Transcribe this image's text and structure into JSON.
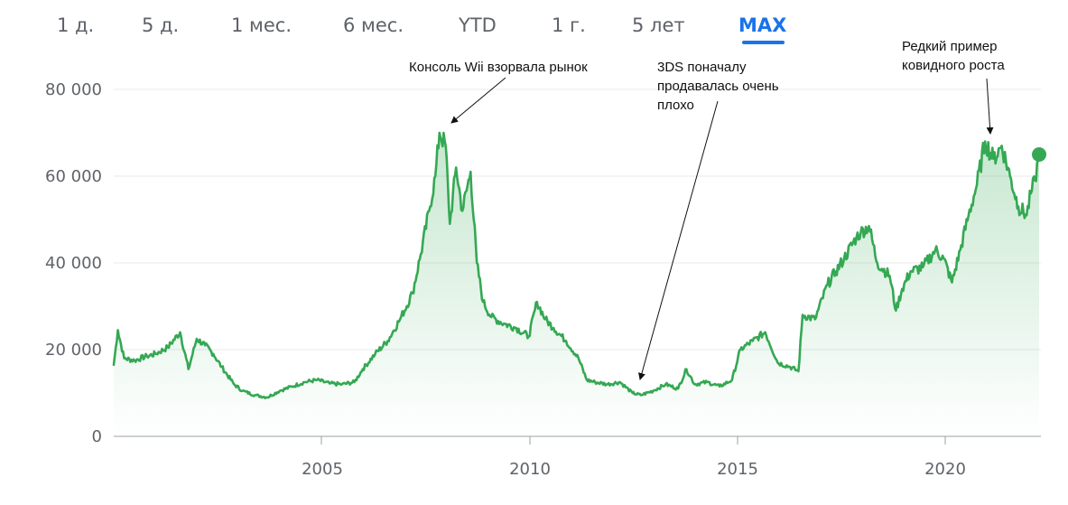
{
  "tabs": [
    {
      "label": "1 д."
    },
    {
      "label": "5 д."
    },
    {
      "label": "1 мес."
    },
    {
      "label": "6 мес."
    },
    {
      "label": "YTD"
    },
    {
      "label": "1 г."
    },
    {
      "label": "5 лет"
    },
    {
      "label": "MAX"
    }
  ],
  "active_tab": "MAX",
  "colors": {
    "line": "#34a853",
    "fill": "#34a853",
    "grid": "#e8eaed",
    "axis": "#5f6368",
    "active_tab": "#1a73e8"
  },
  "chart_data": {
    "type": "line",
    "x_tick_labels": [
      "2005",
      "2010",
      "2015",
      "2020"
    ],
    "y_tick_labels": [
      "0",
      "20 000",
      "40 000",
      "60 000",
      "80 000"
    ],
    "xlim": [
      2000.0,
      2022.3
    ],
    "ylim": [
      0,
      80000
    ],
    "grid": "horizontal",
    "series": [
      {
        "x": [
          2000.0,
          2000.1,
          2000.25,
          2000.5,
          2000.8,
          2001.0,
          2001.3,
          2001.6,
          2001.8,
          2002.0,
          2002.2,
          2002.4,
          2002.6,
          2002.9,
          2003.1,
          2003.4,
          2003.7,
          2004.0,
          2004.3,
          2004.6,
          2004.9,
          2005.2,
          2005.5,
          2005.8,
          2006.0,
          2006.3,
          2006.6,
          2006.9,
          2007.2,
          2007.4,
          2007.6,
          2007.75,
          2007.85,
          2008.0,
          2008.1,
          2008.25,
          2008.4,
          2008.6,
          2008.75,
          2008.9,
          2009.1,
          2009.4,
          2009.7,
          2010.0,
          2010.2,
          2010.4,
          2010.6,
          2010.9,
          2011.2,
          2011.4,
          2011.6,
          2011.9,
          2012.2,
          2012.5,
          2012.7,
          2013.0,
          2013.3,
          2013.6,
          2013.8,
          2014.0,
          2014.3,
          2014.6,
          2014.9,
          2015.1,
          2015.4,
          2015.7,
          2016.0,
          2016.3,
          2016.5,
          2016.6,
          2016.9,
          2017.2,
          2017.4,
          2017.6,
          2017.9,
          2018.0,
          2018.2,
          2018.4,
          2018.7,
          2018.85,
          2019.0,
          2019.2,
          2019.5,
          2019.8,
          2020.0,
          2020.2,
          2020.4,
          2020.6,
          2020.8,
          2021.0,
          2021.2,
          2021.4,
          2021.6,
          2021.8,
          2022.0,
          2022.1,
          2022.2,
          2022.3
        ],
        "y": [
          16500,
          24500,
          18000,
          17500,
          18500,
          19000,
          20500,
          24000,
          15500,
          22500,
          21000,
          19000,
          16000,
          12000,
          10500,
          9500,
          9000,
          10500,
          11500,
          12500,
          13000,
          12200,
          12000,
          12500,
          15500,
          19000,
          22000,
          27000,
          33000,
          42000,
          52000,
          60000,
          70000,
          67000,
          49000,
          62000,
          52000,
          61000,
          40000,
          31000,
          27500,
          26000,
          25000,
          23000,
          31000,
          27000,
          25000,
          22000,
          18000,
          13000,
          12500,
          12000,
          12500,
          10000,
          9500,
          10500,
          12000,
          11000,
          15500,
          12000,
          12500,
          11500,
          13000,
          20000,
          22000,
          24000,
          17000,
          16000,
          15000,
          28000,
          27000,
          35000,
          38000,
          41000,
          46000,
          47000,
          48500,
          40000,
          37000,
          29000,
          34000,
          38000,
          39000,
          43000,
          41000,
          35500,
          43000,
          51000,
          58000,
          68000,
          64000,
          67000,
          60000,
          53000,
          51000,
          56000,
          59000,
          65000
        ]
      }
    ],
    "annotations": [
      {
        "text": "Консоль Wii взорвала рынок"
      },
      {
        "text": "3DS поначалу продавалась очень плохо",
        "lines": [
          "3DS поначалу",
          "продавалась очень",
          "плохо"
        ]
      },
      {
        "text": "Редкий пример ковидного роста",
        "lines": [
          "Редкий пример",
          "ковидного роста"
        ]
      }
    ]
  }
}
